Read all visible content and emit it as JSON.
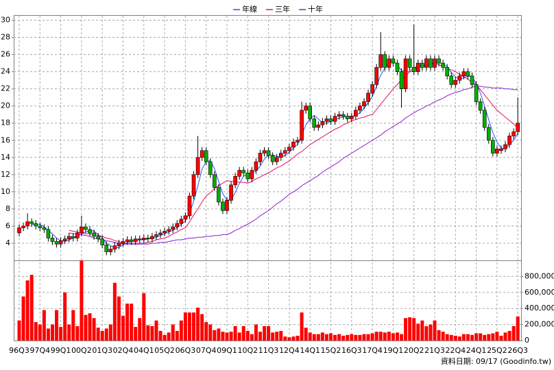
{
  "chart_data": [
    {
      "type": "candlestick",
      "legend": "top",
      "grid": true,
      "up_color": "#ff0000",
      "down_color": "#00b000",
      "categories": [
        "96Q3",
        null,
        null,
        null,
        null,
        "97Q4",
        null,
        null,
        null,
        null,
        "99Q1",
        null,
        null,
        null,
        null,
        "00Q2",
        null,
        null,
        null,
        null,
        "01Q3",
        null,
        null,
        null,
        null,
        "02Q4",
        null,
        null,
        null,
        null,
        "04Q1",
        null,
        null,
        null,
        null,
        "05Q2",
        null,
        null,
        null,
        null,
        "06Q3",
        null,
        null,
        null,
        null,
        "07Q4",
        null,
        null,
        null,
        null,
        "09Q1",
        null,
        null,
        null,
        null,
        "10Q2",
        null,
        null,
        null,
        null,
        "11Q3",
        null,
        null,
        null,
        null,
        "12Q4",
        null,
        null,
        null,
        null,
        "14Q1",
        null,
        null,
        null,
        null,
        "15Q2",
        null,
        null,
        null,
        null,
        "16Q3",
        null,
        null,
        null,
        null,
        "17Q4",
        null,
        null,
        null,
        null,
        "19Q1",
        null,
        null,
        null,
        null,
        "20Q2",
        null,
        null,
        null,
        null,
        "21Q3",
        null,
        null,
        null,
        null,
        "22Q4",
        null,
        null,
        null,
        null,
        "24Q1",
        null,
        null,
        null,
        null,
        "25Q2",
        null,
        null,
        null,
        null,
        "26Q3"
      ],
      "open": [
        5.2,
        5.8,
        6.0,
        6.5,
        6.3,
        6.0,
        5.8,
        5.6,
        4.6,
        4.2,
        3.9,
        4.3,
        4.5,
        4.8,
        4.6,
        5.2,
        5.9,
        5.6,
        5.2,
        4.8,
        4.5,
        3.8,
        3.0,
        3.3,
        3.7,
        4.0,
        4.2,
        4.4,
        4.2,
        4.5,
        4.4,
        4.6,
        4.5,
        4.8,
        5.0,
        5.2,
        5.4,
        5.6,
        5.9,
        6.3,
        6.8,
        7.2,
        9.5,
        12.0,
        14.0,
        14.8,
        13.5,
        12.0,
        10.5,
        8.8,
        7.8,
        9.0,
        10.8,
        11.8,
        12.5,
        12.2,
        11.5,
        12.5,
        13.5,
        14.5,
        14.8,
        14.2,
        13.5,
        14.0,
        14.5,
        14.8,
        15.2,
        15.8,
        16.0,
        19.5,
        20.0,
        18.5,
        17.5,
        17.8,
        18.2,
        18.5,
        18.2,
        18.8,
        19.0,
        18.8,
        18.5,
        18.8,
        19.5,
        20.0,
        20.5,
        21.5,
        22.5,
        24.5,
        26.0,
        24.5,
        25.5,
        25.0,
        24.0,
        22.0,
        25.5,
        24.5,
        24.0,
        25.0,
        24.5,
        25.5,
        24.5,
        25.5,
        25.0,
        24.5,
        23.5,
        22.5,
        23.0,
        23.5,
        24.0,
        23.5,
        22.5,
        20.5,
        19.5,
        17.5,
        16.0,
        14.5,
        14.8,
        15.0,
        15.5,
        16.5,
        17.0
      ],
      "high": [
        6.2,
        6.4,
        7.5,
        6.9,
        6.7,
        6.4,
        6.2,
        6.0,
        5.0,
        4.6,
        4.7,
        4.9,
        5.2,
        5.2,
        5.6,
        7.2,
        6.3,
        6.0,
        5.6,
        5.2,
        4.9,
        4.2,
        3.7,
        4.1,
        4.4,
        4.6,
        4.8,
        4.8,
        4.9,
        4.9,
        5.0,
        5.0,
        5.2,
        5.4,
        5.6,
        5.8,
        6.0,
        6.3,
        6.7,
        7.2,
        7.6,
        9.9,
        12.4,
        16.5,
        15.2,
        15.2,
        13.9,
        12.4,
        10.9,
        9.2,
        9.4,
        11.2,
        12.2,
        12.9,
        12.9,
        12.6,
        12.9,
        13.9,
        14.9,
        15.2,
        15.2,
        14.6,
        14.4,
        14.9,
        15.2,
        15.6,
        16.2,
        16.4,
        20.5,
        20.4,
        20.4,
        18.9,
        18.2,
        18.6,
        18.9,
        18.9,
        19.2,
        19.4,
        19.4,
        19.2,
        19.2,
        19.9,
        20.4,
        20.9,
        21.9,
        22.9,
        24.9,
        28.6,
        26.4,
        25.9,
        25.9,
        25.4,
        24.4,
        25.9,
        25.9,
        29.5,
        25.4,
        25.4,
        25.9,
        25.9,
        25.9,
        25.9,
        25.4,
        24.9,
        23.9,
        23.4,
        23.9,
        24.4,
        24.4,
        23.9,
        22.9,
        20.9,
        19.9,
        17.9,
        16.4,
        15.4,
        15.4,
        15.9,
        16.9,
        17.4,
        21.0
      ],
      "low": [
        4.8,
        5.4,
        5.6,
        5.9,
        5.6,
        5.4,
        5.2,
        4.2,
        3.8,
        3.5,
        3.5,
        3.9,
        4.1,
        4.2,
        4.2,
        4.8,
        5.2,
        4.8,
        4.4,
        4.1,
        3.4,
        2.6,
        2.6,
        2.9,
        3.3,
        3.6,
        3.8,
        3.8,
        3.8,
        4.0,
        4.0,
        4.1,
        4.1,
        4.4,
        4.6,
        4.8,
        5.0,
        5.2,
        5.5,
        5.9,
        6.4,
        6.8,
        9.1,
        11.6,
        13.6,
        13.1,
        11.6,
        10.1,
        8.4,
        7.4,
        7.4,
        8.6,
        10.4,
        11.4,
        11.8,
        11.1,
        11.1,
        12.1,
        13.1,
        14.1,
        13.8,
        13.1,
        13.1,
        13.6,
        14.1,
        14.4,
        14.8,
        15.4,
        15.6,
        19.1,
        18.1,
        17.1,
        17.1,
        17.4,
        17.8,
        17.8,
        17.8,
        18.4,
        18.4,
        18.1,
        18.1,
        18.4,
        19.1,
        19.6,
        20.1,
        21.1,
        22.1,
        24.1,
        24.1,
        24.1,
        24.6,
        23.6,
        19.8,
        21.6,
        24.1,
        23.6,
        23.6,
        24.1,
        24.1,
        24.1,
        24.1,
        24.6,
        24.1,
        23.1,
        22.1,
        22.1,
        22.6,
        23.1,
        23.1,
        22.1,
        20.1,
        19.1,
        17.1,
        15.6,
        14.1,
        14.1,
        14.4,
        14.6,
        15.1,
        16.1,
        16.6
      ],
      "close": [
        5.8,
        6.0,
        6.5,
        6.3,
        6.0,
        5.8,
        5.6,
        4.6,
        4.2,
        3.9,
        4.3,
        4.5,
        4.8,
        4.6,
        5.2,
        5.9,
        5.6,
        5.2,
        4.8,
        4.5,
        3.8,
        3.0,
        3.3,
        3.7,
        4.0,
        4.2,
        4.4,
        4.2,
        4.5,
        4.4,
        4.6,
        4.5,
        4.8,
        5.0,
        5.2,
        5.4,
        5.6,
        5.9,
        6.3,
        6.8,
        7.2,
        9.5,
        12.0,
        14.0,
        14.8,
        13.5,
        12.0,
        10.5,
        8.8,
        7.8,
        9.0,
        10.8,
        11.8,
        12.5,
        12.2,
        11.5,
        12.5,
        13.5,
        14.5,
        14.8,
        14.2,
        13.5,
        14.0,
        14.5,
        14.8,
        15.2,
        15.8,
        16.0,
        19.5,
        20.0,
        18.5,
        17.5,
        17.8,
        18.2,
        18.5,
        18.2,
        18.8,
        19.0,
        18.8,
        18.5,
        18.8,
        19.5,
        20.0,
        20.5,
        21.5,
        22.5,
        24.5,
        26.0,
        24.5,
        25.5,
        25.0,
        24.0,
        22.0,
        25.5,
        24.5,
        24.0,
        25.0,
        24.5,
        25.5,
        24.5,
        25.5,
        25.0,
        24.5,
        23.5,
        22.5,
        23.0,
        23.5,
        24.0,
        23.5,
        22.5,
        20.5,
        19.5,
        17.5,
        16.0,
        14.5,
        15.0,
        15.0,
        15.5,
        16.5,
        17.0,
        18.0
      ],
      "series": [
        {
          "name": "年線",
          "color": "#2255ff",
          "values": [
            null,
            null,
            null,
            6.2,
            6.2,
            6.2,
            5.9,
            5.5,
            5.1,
            4.6,
            4.3,
            4.2,
            4.4,
            4.6,
            4.8,
            5.1,
            5.3,
            5.5,
            5.4,
            5.0,
            4.6,
            4.0,
            3.7,
            3.5,
            3.5,
            3.8,
            4.1,
            4.2,
            4.3,
            4.4,
            4.4,
            4.5,
            4.6,
            4.7,
            4.9,
            5.1,
            5.3,
            5.5,
            5.8,
            6.2,
            6.6,
            7.5,
            8.9,
            10.7,
            12.6,
            13.6,
            13.6,
            12.7,
            11.2,
            9.8,
            9.0,
            9.1,
            9.9,
            11.0,
            11.8,
            12.0,
            12.2,
            12.4,
            13.0,
            13.8,
            14.3,
            14.3,
            14.1,
            14.1,
            14.2,
            14.6,
            15.1,
            15.5,
            16.6,
            17.8,
            18.5,
            18.9,
            18.5,
            18.0,
            18.0,
            18.2,
            18.4,
            18.6,
            18.7,
            18.8,
            18.8,
            18.9,
            19.2,
            19.7,
            20.4,
            21.1,
            22.3,
            23.6,
            24.4,
            25.1,
            25.3,
            24.8,
            24.1,
            24.1,
            24.0,
            24.0,
            24.8,
            24.5,
            24.8,
            24.9,
            25.0,
            25.1,
            24.9,
            24.6,
            23.9,
            23.4,
            23.1,
            23.3,
            23.5,
            23.4,
            22.6,
            21.5,
            20.0,
            18.4,
            16.9,
            15.8,
            15.1,
            15.0,
            15.5,
            16.0,
            16.8
          ]
        },
        {
          "name": "三年",
          "color": "#e0105a",
          "values": [
            null,
            null,
            null,
            null,
            null,
            null,
            null,
            null,
            null,
            null,
            null,
            null,
            5.5,
            5.4,
            5.3,
            5.2,
            5.1,
            5.1,
            5.0,
            4.9,
            4.8,
            4.6,
            4.5,
            4.3,
            4.2,
            4.0,
            4.0,
            4.0,
            4.0,
            4.0,
            4.0,
            4.1,
            4.2,
            4.4,
            4.5,
            4.6,
            4.8,
            5.1,
            5.3,
            5.6,
            5.8,
            6.5,
            7.3,
            8.0,
            8.8,
            9.5,
            9.9,
            10.4,
            10.7,
            11.0,
            11.3,
            11.2,
            11.2,
            11.1,
            11.1,
            11.0,
            11.2,
            11.5,
            11.7,
            12.0,
            12.2,
            12.5,
            12.8,
            13.0,
            13.3,
            13.6,
            14.0,
            14.4,
            14.7,
            15.1,
            15.5,
            15.8,
            16.1,
            16.4,
            16.7,
            17.0,
            17.3,
            17.5,
            17.8,
            18.0,
            18.3,
            18.4,
            18.6,
            18.7,
            18.9,
            19.0,
            19.6,
            20.2,
            20.8,
            21.4,
            22.0,
            22.5,
            23.0,
            23.5,
            24.0,
            24.5,
            24.6,
            24.7,
            24.8,
            24.9,
            25.0,
            24.8,
            24.6,
            24.4,
            24.2,
            24.0,
            23.7,
            23.4,
            23.1,
            22.8,
            22.5,
            21.9,
            21.3,
            20.7,
            20.1,
            19.5,
            19.1,
            18.7,
            18.3,
            17.9,
            17.5
          ]
        },
        {
          "name": "十年",
          "color": "#8a1cd0",
          "values": [
            null,
            null,
            null,
            null,
            null,
            null,
            null,
            null,
            null,
            null,
            null,
            null,
            5.2,
            5.1,
            5.1,
            5.0,
            4.9,
            4.8,
            4.6,
            4.5,
            4.4,
            4.3,
            4.2,
            4.1,
            4.0,
            3.9,
            3.9,
            3.9,
            3.9,
            3.9,
            3.9,
            3.9,
            4.0,
            4.0,
            4.1,
            4.1,
            4.2,
            4.3,
            4.4,
            4.4,
            4.5,
            4.6,
            4.6,
            4.7,
            4.7,
            4.8,
            4.8,
            4.9,
            4.9,
            5.0,
            5.0,
            5.2,
            5.5,
            5.7,
            6.0,
            6.2,
            6.5,
            6.8,
            7.2,
            7.5,
            7.8,
            8.2,
            8.6,
            8.9,
            9.3,
            9.7,
            10.0,
            10.3,
            10.7,
            11.0,
            11.3,
            11.6,
            11.9,
            12.3,
            12.6,
            12.9,
            13.2,
            13.5,
            13.9,
            14.2,
            14.5,
            14.8,
            15.1,
            15.4,
            15.7,
            16.0,
            16.3,
            16.6,
            17.0,
            17.3,
            17.6,
            17.9,
            18.2,
            18.6,
            18.9,
            19.2,
            19.5,
            19.7,
            20.0,
            20.2,
            20.5,
            20.7,
            20.9,
            21.2,
            21.4,
            21.6,
            21.7,
            21.9,
            22.0,
            22.2,
            22.3,
            22.3,
            22.2,
            22.2,
            22.1,
            22.1,
            22.1,
            22.0,
            22.0,
            21.9,
            21.9
          ]
        }
      ],
      "ylim": [
        2,
        30.6
      ],
      "yticks": [
        4,
        6,
        8,
        10,
        12,
        14,
        16,
        18,
        20,
        22,
        24,
        26,
        28,
        30
      ]
    },
    {
      "type": "bar",
      "color": "#ff0000",
      "grid": true,
      "values": [
        250000,
        550000,
        750000,
        820000,
        230000,
        200000,
        380000,
        150000,
        200000,
        380000,
        170000,
        600000,
        200000,
        380000,
        180000,
        1000000,
        320000,
        340000,
        280000,
        160000,
        120000,
        150000,
        200000,
        720000,
        550000,
        310000,
        460000,
        460000,
        170000,
        280000,
        590000,
        190000,
        180000,
        250000,
        120000,
        70000,
        100000,
        200000,
        120000,
        250000,
        350000,
        350000,
        350000,
        410000,
        330000,
        230000,
        200000,
        130000,
        150000,
        110000,
        100000,
        110000,
        180000,
        100000,
        180000,
        120000,
        80000,
        200000,
        110000,
        180000,
        180000,
        100000,
        110000,
        120000,
        50000,
        40000,
        50000,
        60000,
        350000,
        160000,
        100000,
        80000,
        80000,
        100000,
        80000,
        90000,
        70000,
        80000,
        60000,
        70000,
        80000,
        70000,
        70000,
        80000,
        80000,
        90000,
        110000,
        110000,
        100000,
        110000,
        90000,
        100000,
        80000,
        280000,
        290000,
        280000,
        210000,
        250000,
        180000,
        200000,
        250000,
        130000,
        110000,
        80000,
        70000,
        60000,
        50000,
        80000,
        80000,
        70000,
        90000,
        90000,
        70000,
        80000,
        90000,
        110000,
        60000,
        100000,
        120000,
        180000,
        300000
      ],
      "ylim": [
        0,
        1000000
      ],
      "yticks": [
        0,
        {
          "value": 200000,
          "label": "200,000"
        },
        {
          "value": 400000,
          "label": "400,000"
        },
        {
          "value": 600000,
          "label": "600,000"
        },
        {
          "value": 800000,
          "label": "800,000"
        }
      ],
      "footnote": "資料日期: 09/17 (Goodinfo.tw)"
    }
  ]
}
